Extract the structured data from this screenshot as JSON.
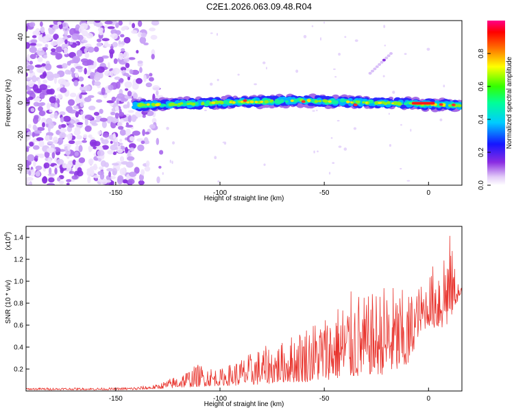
{
  "title": "C2E1.2026.063.09.48.R04",
  "chart_data": [
    {
      "type": "heatmap",
      "xlabel": "Height of straight line (km)",
      "ylabel": "Frequency (Hz)",
      "xlim": [
        -193,
        16
      ],
      "ylim": [
        -50,
        50
      ],
      "xticks": [
        -150,
        -100,
        -50,
        0
      ],
      "yticks": [
        -40,
        -20,
        0,
        20,
        40
      ],
      "colorbar": {
        "label": "Normalized spectral amplitude",
        "range": [
          0,
          1
        ],
        "ticks": [
          "0.0",
          "0.2",
          "0.4",
          "0.6",
          "0.8"
        ]
      },
      "band": {
        "x_start": -141,
        "x_end": 15,
        "center_start": -1.5,
        "center_mid": 1.5,
        "center_end": -1.5,
        "width": 6
      },
      "noise_region": {
        "x_start": -193,
        "x_end": -128
      },
      "streak": {
        "x_start": -28,
        "x_end": -18,
        "y_start": 18,
        "y_end": 30
      }
    },
    {
      "type": "line",
      "xlabel": "Height of straight line (km)",
      "ylabel": "SNR (10 * v/v)",
      "y_multiplier": "(x10",
      "y_multiplier_exp": "4",
      "xlim": [
        -193,
        16
      ],
      "ylim": [
        0,
        1.5
      ],
      "xticks": [
        -150,
        -100,
        -50,
        0
      ],
      "yticks": [
        "0.2",
        "0.4",
        "0.6",
        "0.8",
        "1.0",
        "1.2",
        "1.4"
      ],
      "series": [
        {
          "name": "SNR",
          "color": "#e8312a",
          "envelope_x": [
            -193,
            -150,
            -140,
            -130,
            -120,
            -110,
            -100,
            -90,
            -80,
            -70,
            -60,
            -50,
            -40,
            -35,
            -30,
            -20,
            -10,
            -5,
            0,
            5,
            10,
            12,
            15
          ],
          "envelope_min": [
            0.01,
            0.01,
            0.01,
            0.02,
            0.03,
            0.04,
            0.05,
            0.05,
            0.06,
            0.08,
            0.08,
            0.1,
            0.12,
            0.12,
            0.15,
            0.15,
            0.2,
            0.5,
            0.6,
            0.55,
            0.6,
            0.75,
            0.85
          ],
          "envelope_max": [
            0.03,
            0.03,
            0.04,
            0.06,
            0.15,
            0.25,
            0.2,
            0.3,
            0.4,
            0.45,
            0.6,
            0.7,
            0.85,
            0.95,
            0.85,
            1.0,
            0.9,
            0.95,
            1.05,
            1.3,
            1.47,
            1.2,
            0.95
          ]
        }
      ]
    }
  ]
}
